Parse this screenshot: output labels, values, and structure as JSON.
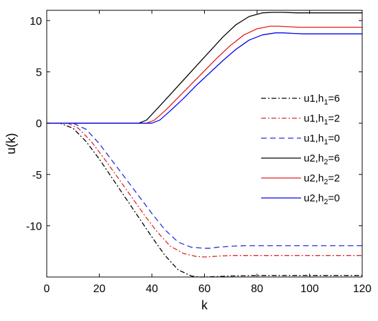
{
  "chart_data": {
    "type": "line",
    "xlabel": "k",
    "ylabel": "u(k)",
    "xlim": [
      0,
      120
    ],
    "ylim": [
      -15,
      11
    ],
    "xticks": [
      "0",
      "20",
      "40",
      "60",
      "80",
      "100",
      "120"
    ],
    "yticks": [
      "10",
      "5",
      "0",
      "-5",
      "-10"
    ],
    "grid": false,
    "legend_position": "right",
    "series": [
      {
        "name": "u1,h1=6",
        "label_main": "u1,h",
        "label_sub": "1",
        "label_end": "=6",
        "color": "#000000",
        "style": "dashdot",
        "x": [
          0,
          5,
          10,
          15,
          20,
          25,
          30,
          35,
          40,
          45,
          50,
          55,
          58,
          60,
          65,
          70,
          80,
          90,
          100,
          110,
          120
        ],
        "y": [
          0,
          0,
          -0.5,
          -1.8,
          -3.5,
          -5.4,
          -7.3,
          -9.2,
          -11.1,
          -12.9,
          -14.3,
          -14.9,
          -15.0,
          -15.0,
          -14.95,
          -14.9,
          -14.85,
          -14.85,
          -14.85,
          -14.85,
          -14.85
        ]
      },
      {
        "name": "u1,h1=2",
        "label_main": "u1,h",
        "label_sub": "1",
        "label_end": "=2",
        "color": "#d62728",
        "style": "dashdot",
        "x": [
          0,
          8,
          12,
          17,
          22,
          27,
          32,
          37,
          42,
          47,
          52,
          57,
          60,
          63,
          66,
          70,
          80,
          90,
          100,
          110,
          120
        ],
        "y": [
          0,
          0,
          -0.5,
          -1.8,
          -3.5,
          -5.3,
          -7.1,
          -8.9,
          -10.6,
          -12.0,
          -12.7,
          -13.0,
          -13.05,
          -13.0,
          -12.95,
          -12.9,
          -12.9,
          -12.9,
          -12.9,
          -12.9,
          -12.9
        ]
      },
      {
        "name": "u1,h1=0",
        "label_main": "u1,h",
        "label_sub": "1",
        "label_end": "=0",
        "color": "#1f2fd6",
        "style": "dashed",
        "x": [
          0,
          10,
          15,
          20,
          25,
          30,
          35,
          40,
          45,
          50,
          55,
          60,
          62,
          65,
          70,
          75,
          80,
          90,
          100,
          110,
          120
        ],
        "y": [
          0,
          0,
          -0.6,
          -2.0,
          -3.7,
          -5.4,
          -7.1,
          -8.8,
          -10.4,
          -11.6,
          -12.1,
          -12.2,
          -12.2,
          -12.1,
          -12.0,
          -11.95,
          -11.95,
          -11.95,
          -11.95,
          -11.95,
          -11.95
        ]
      },
      {
        "name": "u2,h2=6",
        "label_main": "u2,h",
        "label_sub": "2",
        "label_end": "=6",
        "color": "#000000",
        "style": "solid",
        "x": [
          0,
          10,
          20,
          30,
          35,
          38,
          42,
          47,
          52,
          57,
          62,
          67,
          72,
          77,
          82,
          86,
          90,
          95,
          100,
          110,
          120
        ],
        "y": [
          0,
          0,
          0,
          0,
          0,
          0.3,
          1.4,
          2.8,
          4.2,
          5.6,
          7.0,
          8.4,
          9.6,
          10.4,
          10.75,
          10.8,
          10.8,
          10.75,
          10.75,
          10.75,
          10.75
        ]
      },
      {
        "name": "u2,h2=2",
        "label_main": "u2,h",
        "label_sub": "2",
        "label_end": "=2",
        "color": "#e31a1c",
        "style": "solid",
        "x": [
          0,
          10,
          20,
          30,
          38,
          41,
          45,
          50,
          55,
          60,
          65,
          70,
          75,
          80,
          85,
          88,
          92,
          96,
          100,
          110,
          120
        ],
        "y": [
          0,
          0,
          0,
          0,
          0,
          0.3,
          1.2,
          2.5,
          3.8,
          5.1,
          6.4,
          7.6,
          8.6,
          9.2,
          9.45,
          9.45,
          9.4,
          9.35,
          9.35,
          9.35,
          9.35
        ]
      },
      {
        "name": "u2,h2=0",
        "label_main": "u2,h",
        "label_sub": "2",
        "label_end": "=0",
        "color": "#0000ee",
        "style": "solid",
        "x": [
          0,
          10,
          20,
          30,
          40,
          43,
          47,
          52,
          57,
          62,
          67,
          72,
          77,
          82,
          87,
          90,
          94,
          98,
          100,
          110,
          120
        ],
        "y": [
          0,
          0,
          0,
          0,
          0,
          0.3,
          1.2,
          2.4,
          3.7,
          4.9,
          6.1,
          7.2,
          8.1,
          8.6,
          8.8,
          8.8,
          8.75,
          8.7,
          8.7,
          8.7,
          8.7
        ]
      }
    ]
  }
}
